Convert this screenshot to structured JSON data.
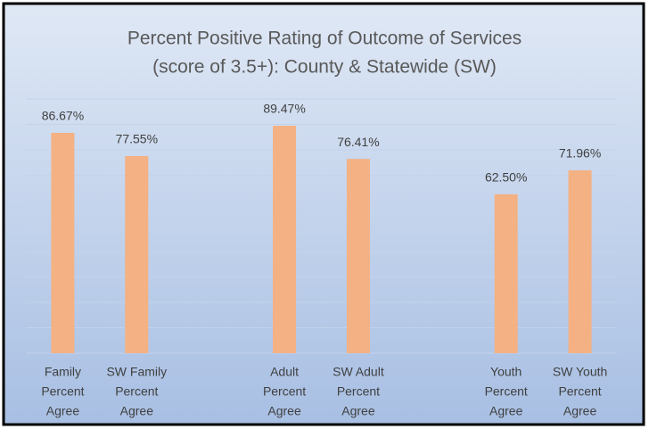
{
  "chart_data": {
    "type": "bar",
    "title": [
      "Percent Positive Rating of Outcome of Services",
      "(score of 3.5+): County & Statewide (SW)"
    ],
    "categories": [
      [
        "Family",
        "Percent",
        "Agree"
      ],
      [
        "SW Family",
        "Percent",
        "Agree"
      ],
      null,
      [
        "Adult",
        "Percent",
        "Agree"
      ],
      [
        "SW Adult",
        "Percent",
        "Agree"
      ],
      null,
      [
        "Youth",
        "Percent",
        "Agree"
      ],
      [
        "SW Youth",
        "Percent",
        "Agree"
      ]
    ],
    "values": [
      86.67,
      77.55,
      null,
      89.47,
      76.41,
      null,
      62.5,
      71.96
    ],
    "value_labels": [
      "86.67%",
      "77.55%",
      null,
      "89.47%",
      "76.41%",
      null,
      "62.50%",
      "71.96%"
    ],
    "color": "#f4b183",
    "ylim": [
      0,
      100
    ],
    "yticks": [
      0,
      10,
      20,
      30,
      40,
      50,
      60,
      70,
      80,
      90,
      100
    ],
    "grid": true
  }
}
